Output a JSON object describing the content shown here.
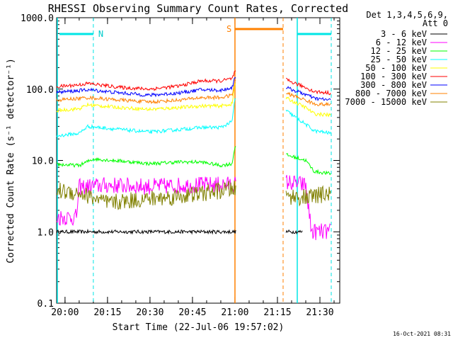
{
  "chart_data": {
    "type": "line",
    "title": "RHESSI Observing Summary Count Rates, Corrected",
    "ylabel": "Corrected Count Rate (s⁻¹ detector⁻¹)",
    "xlabel": "Start Time (22-Jul-06 19:57:02)",
    "y_scale": "log",
    "ylim": [
      0.1,
      1000
    ],
    "xlim": [
      "19:57:02",
      "21:37:00"
    ],
    "y_ticks": [
      "1000.0",
      "100.0",
      "10.0",
      "1.0",
      "0.1"
    ],
    "x_ticks": [
      "20:00",
      "20:15",
      "20:30",
      "20:45",
      "21:00",
      "21:15",
      "21:30"
    ],
    "legend_title": [
      "Det 1,3,4,5,6,9,",
      "Att 0"
    ],
    "legend_position": "right",
    "series": [
      {
        "name": "3 - 6 keV",
        "color": "#000000",
        "points": [
          [
            "19:57",
            1.0
          ],
          [
            "20:10",
            1.0
          ],
          [
            "20:30",
            1.0
          ],
          [
            "20:48",
            1.0
          ],
          [
            "20:59",
            1.0
          ],
          [
            "21:22",
            1.0
          ],
          [
            "21:24",
            1.0
          ]
        ]
      },
      {
        "name": "6 - 12 keV",
        "color": "#ff00ff",
        "points": [
          [
            "19:57",
            1.6
          ],
          [
            "20:04",
            1.6
          ],
          [
            "20:05",
            4.2
          ],
          [
            "20:15",
            4.5
          ],
          [
            "20:30",
            4.3
          ],
          [
            "20:45",
            4.5
          ],
          [
            "20:59",
            4.6
          ],
          [
            "21:18",
            5.0
          ],
          [
            "21:25",
            4.5
          ],
          [
            "21:27",
            1.0
          ],
          [
            "21:34",
            1.0
          ]
        ]
      },
      {
        "name": "12 - 25 keV",
        "color": "#00ff00",
        "points": [
          [
            "19:57",
            8.8
          ],
          [
            "20:05",
            8.5
          ],
          [
            "20:10",
            10.5
          ],
          [
            "20:20",
            9.8
          ],
          [
            "20:30",
            9.0
          ],
          [
            "20:40",
            9.5
          ],
          [
            "20:48",
            9.5
          ],
          [
            "20:55",
            8.5
          ],
          [
            "20:59",
            9.0
          ],
          [
            "21:00",
            16.0
          ],
          [
            "21:18",
            12.0
          ],
          [
            "21:25",
            10.0
          ],
          [
            "21:28",
            7.0
          ],
          [
            "21:34",
            6.5
          ]
        ]
      },
      {
        "name": "25 - 50 keV",
        "color": "#00ffff",
        "points": [
          [
            "19:57",
            22
          ],
          [
            "20:05",
            24
          ],
          [
            "20:08",
            30
          ],
          [
            "20:20",
            27
          ],
          [
            "20:30",
            25
          ],
          [
            "20:40",
            27
          ],
          [
            "20:48",
            29
          ],
          [
            "20:55",
            29
          ],
          [
            "20:59",
            35
          ],
          [
            "21:00",
            75
          ],
          [
            "21:18",
            50
          ],
          [
            "21:25",
            32
          ],
          [
            "21:28",
            26
          ],
          [
            "21:34",
            24
          ]
        ]
      },
      {
        "name": "50 - 100 keV",
        "color": "#ffff00",
        "points": [
          [
            "19:57",
            50
          ],
          [
            "20:05",
            53
          ],
          [
            "20:08",
            60
          ],
          [
            "20:20",
            55
          ],
          [
            "20:30",
            52
          ],
          [
            "20:40",
            55
          ],
          [
            "20:48",
            58
          ],
          [
            "20:55",
            58
          ],
          [
            "20:59",
            62
          ],
          [
            "21:00",
            120
          ],
          [
            "21:18",
            75
          ],
          [
            "21:25",
            55
          ],
          [
            "21:28",
            45
          ],
          [
            "21:34",
            43
          ]
        ]
      },
      {
        "name": "100 - 300 keV",
        "color": "#ff0000",
        "points": [
          [
            "19:57",
            108
          ],
          [
            "20:05",
            115
          ],
          [
            "20:08",
            120
          ],
          [
            "20:20",
            105
          ],
          [
            "20:30",
            100
          ],
          [
            "20:40",
            110
          ],
          [
            "20:48",
            130
          ],
          [
            "20:55",
            130
          ],
          [
            "20:59",
            140
          ],
          [
            "21:00",
            175
          ],
          [
            "21:18",
            135
          ],
          [
            "21:25",
            105
          ],
          [
            "21:28",
            92
          ],
          [
            "21:34",
            88
          ]
        ]
      },
      {
        "name": "300 - 800 keV",
        "color": "#0000ff",
        "points": [
          [
            "19:57",
            90
          ],
          [
            "20:05",
            95
          ],
          [
            "20:08",
            98
          ],
          [
            "20:20",
            88
          ],
          [
            "20:30",
            82
          ],
          [
            "20:40",
            88
          ],
          [
            "20:48",
            98
          ],
          [
            "20:55",
            96
          ],
          [
            "20:59",
            105
          ],
          [
            "21:00",
            150
          ],
          [
            "21:18",
            105
          ],
          [
            "21:25",
            84
          ],
          [
            "21:28",
            74
          ],
          [
            "21:34",
            70
          ]
        ]
      },
      {
        "name": "800 - 7000 keV",
        "color": "#ff8000",
        "points": [
          [
            "19:57",
            70
          ],
          [
            "20:05",
            74
          ],
          [
            "20:08",
            76
          ],
          [
            "20:20",
            70
          ],
          [
            "20:30",
            66
          ],
          [
            "20:40",
            70
          ],
          [
            "20:48",
            76
          ],
          [
            "20:55",
            76
          ],
          [
            "20:59",
            82
          ],
          [
            "21:00",
            130
          ],
          [
            "21:18",
            88
          ],
          [
            "21:25",
            70
          ],
          [
            "21:28",
            62
          ],
          [
            "21:34",
            60
          ]
        ]
      },
      {
        "name": "7000 - 15000 keV",
        "color": "#808000",
        "points": [
          [
            "19:57",
            3.8
          ],
          [
            "20:05",
            3.5
          ],
          [
            "20:10",
            3.0
          ],
          [
            "20:15",
            2.5
          ],
          [
            "20:25",
            2.8
          ],
          [
            "20:35",
            3.0
          ],
          [
            "20:45",
            3.3
          ],
          [
            "20:59",
            4.0
          ],
          [
            "21:18",
            3.2
          ],
          [
            "21:25",
            3.0
          ],
          [
            "21:34",
            3.5
          ]
        ]
      }
    ],
    "annotations": {
      "N_label": "N",
      "S_label": "S",
      "night_intervals": [
        [
          "19:57",
          "20:10"
        ],
        [
          "21:22",
          "21:34"
        ]
      ],
      "saa_interval": [
        "21:00",
        "21:17"
      ],
      "data_gap": [
        "21:00",
        "21:18"
      ]
    },
    "timestamp": "16-Oct-2021 08:31"
  }
}
